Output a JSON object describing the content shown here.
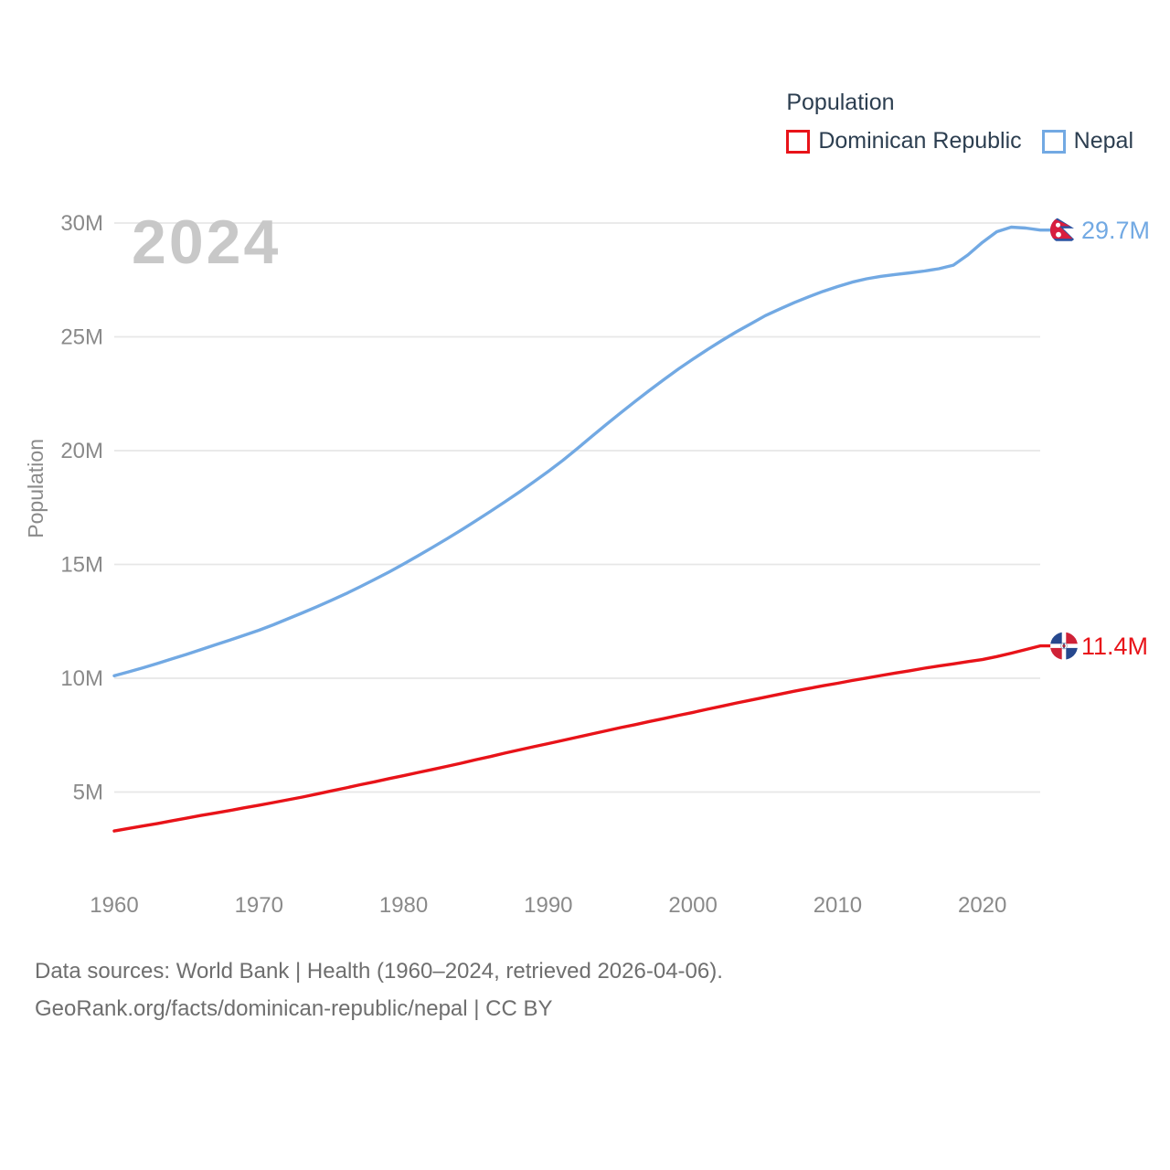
{
  "legend": {
    "title": "Population",
    "items": [
      {
        "id": "dominican-republic",
        "label": "Dominican Republic",
        "color": "#e81319"
      },
      {
        "id": "nepal",
        "label": "Nepal",
        "color": "#72a9e3"
      }
    ]
  },
  "footer": {
    "line1": "Data sources: World Bank | Health (1960–2024, retrieved 2026-04-06).",
    "line2": "GeoRank.org/facts/dominican-republic/nepal | CC BY"
  },
  "colors": {
    "grid": "#e7e7e7",
    "axis_text": "#8a8a8a",
    "watermark": "#c8c8c8",
    "legend_text": "#2c3e50",
    "footer_text": "#6e6e6e"
  },
  "chart_data": {
    "type": "line",
    "title": "Population",
    "watermark": "2024",
    "xlabel": "",
    "ylabel": "Population",
    "xlim": [
      1960,
      2024
    ],
    "ylim": [
      0,
      30
    ],
    "grid": "horizontal",
    "legend_position": "top-right",
    "x_ticks": [
      1960,
      1970,
      1980,
      1990,
      2000,
      2010,
      2020
    ],
    "y_ticks": [
      {
        "label": "5M",
        "value": 5
      },
      {
        "label": "10M",
        "value": 10
      },
      {
        "label": "15M",
        "value": 15
      },
      {
        "label": "20M",
        "value": 20
      },
      {
        "label": "25M",
        "value": 25
      },
      {
        "label": "30M",
        "value": 30
      }
    ],
    "x_start": 1960,
    "x_step": 1,
    "series": [
      {
        "id": "nepal",
        "name": "Nepal",
        "color": "#72a9e3",
        "end_label": "29.7M",
        "end_value": 29.69,
        "values": [
          10.11,
          10.28,
          10.46,
          10.65,
          10.85,
          11.05,
          11.26,
          11.47,
          11.68,
          11.89,
          12.11,
          12.35,
          12.61,
          12.87,
          13.14,
          13.42,
          13.71,
          14.02,
          14.34,
          14.67,
          15.02,
          15.38,
          15.75,
          16.13,
          16.52,
          16.92,
          17.33,
          17.75,
          18.18,
          18.63,
          19.09,
          19.57,
          20.09,
          20.62,
          21.15,
          21.66,
          22.16,
          22.65,
          23.13,
          23.59,
          24.02,
          24.44,
          24.84,
          25.22,
          25.57,
          25.93,
          26.22,
          26.5,
          26.76,
          27.0,
          27.21,
          27.4,
          27.55,
          27.66,
          27.74,
          27.81,
          27.89,
          27.99,
          28.15,
          28.6,
          29.15,
          29.62,
          29.82,
          29.78,
          29.69
        ]
      },
      {
        "id": "dominican-republic",
        "name": "Dominican Republic",
        "color": "#e81319",
        "end_label": "11.4M",
        "end_value": 11.42,
        "values": [
          3.29,
          3.4,
          3.51,
          3.62,
          3.74,
          3.85,
          3.97,
          4.08,
          4.19,
          4.31,
          4.42,
          4.54,
          4.66,
          4.78,
          4.91,
          5.05,
          5.18,
          5.32,
          5.45,
          5.59,
          5.72,
          5.86,
          5.99,
          6.13,
          6.27,
          6.42,
          6.56,
          6.71,
          6.85,
          6.99,
          7.13,
          7.27,
          7.41,
          7.55,
          7.69,
          7.83,
          7.96,
          8.1,
          8.23,
          8.37,
          8.5,
          8.64,
          8.77,
          8.91,
          9.04,
          9.17,
          9.3,
          9.43,
          9.55,
          9.67,
          9.78,
          9.9,
          10.01,
          10.12,
          10.23,
          10.33,
          10.44,
          10.54,
          10.63,
          10.73,
          10.82,
          10.95,
          11.1,
          11.26,
          11.42
        ]
      }
    ]
  }
}
